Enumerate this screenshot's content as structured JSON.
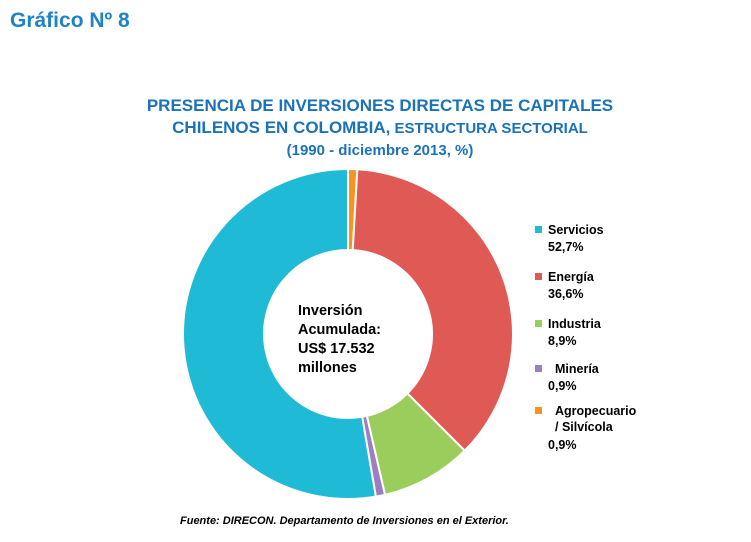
{
  "figure_label": "Gráfico Nº 8",
  "title": {
    "line1": "PRESENCIA DE INVERSIONES DIRECTAS DE CAPITALES",
    "line2_main": "CHILENOS EN  COLOMBIA,",
    "line2_sub": " ESTRUCTURA SECTORIAL",
    "line3": "(1990 - diciembre 2013, %)"
  },
  "center": {
    "line1": "Inversión",
    "line2": "Acumulada:",
    "line3": "US$ 17.532",
    "line4": "millones"
  },
  "source": "Fuente: DIRECON. Departamento de Inversiones en el Exterior.",
  "chart_data": {
    "type": "pie",
    "style": "donut",
    "start_category": "Agropecuario / Silvícola",
    "categories": [
      "Agropecuario / Silvícola",
      "Energía",
      "Industria",
      "Minería",
      "Servicios"
    ],
    "values": [
      0.9,
      36.6,
      8.9,
      0.9,
      52.7
    ],
    "colors": [
      "#f7931e",
      "#e05a55",
      "#9acd5b",
      "#9b7fc0",
      "#1fbad6"
    ],
    "legend": [
      {
        "name": "Servicios",
        "label": "52,7%",
        "color": "#1fbad6"
      },
      {
        "name": "Energía",
        "label": "36,6%",
        "color": "#e05a55"
      },
      {
        "name": "Industria",
        "label": "8,9%",
        "color": "#9acd5b"
      },
      {
        "name": "Minería",
        "label": "0,9%",
        "color": "#9b7fc0"
      },
      {
        "name": "Agropecuario / Silvícola",
        "label": "0,9%",
        "color": "#f7931e"
      }
    ],
    "legend_position": "right"
  }
}
